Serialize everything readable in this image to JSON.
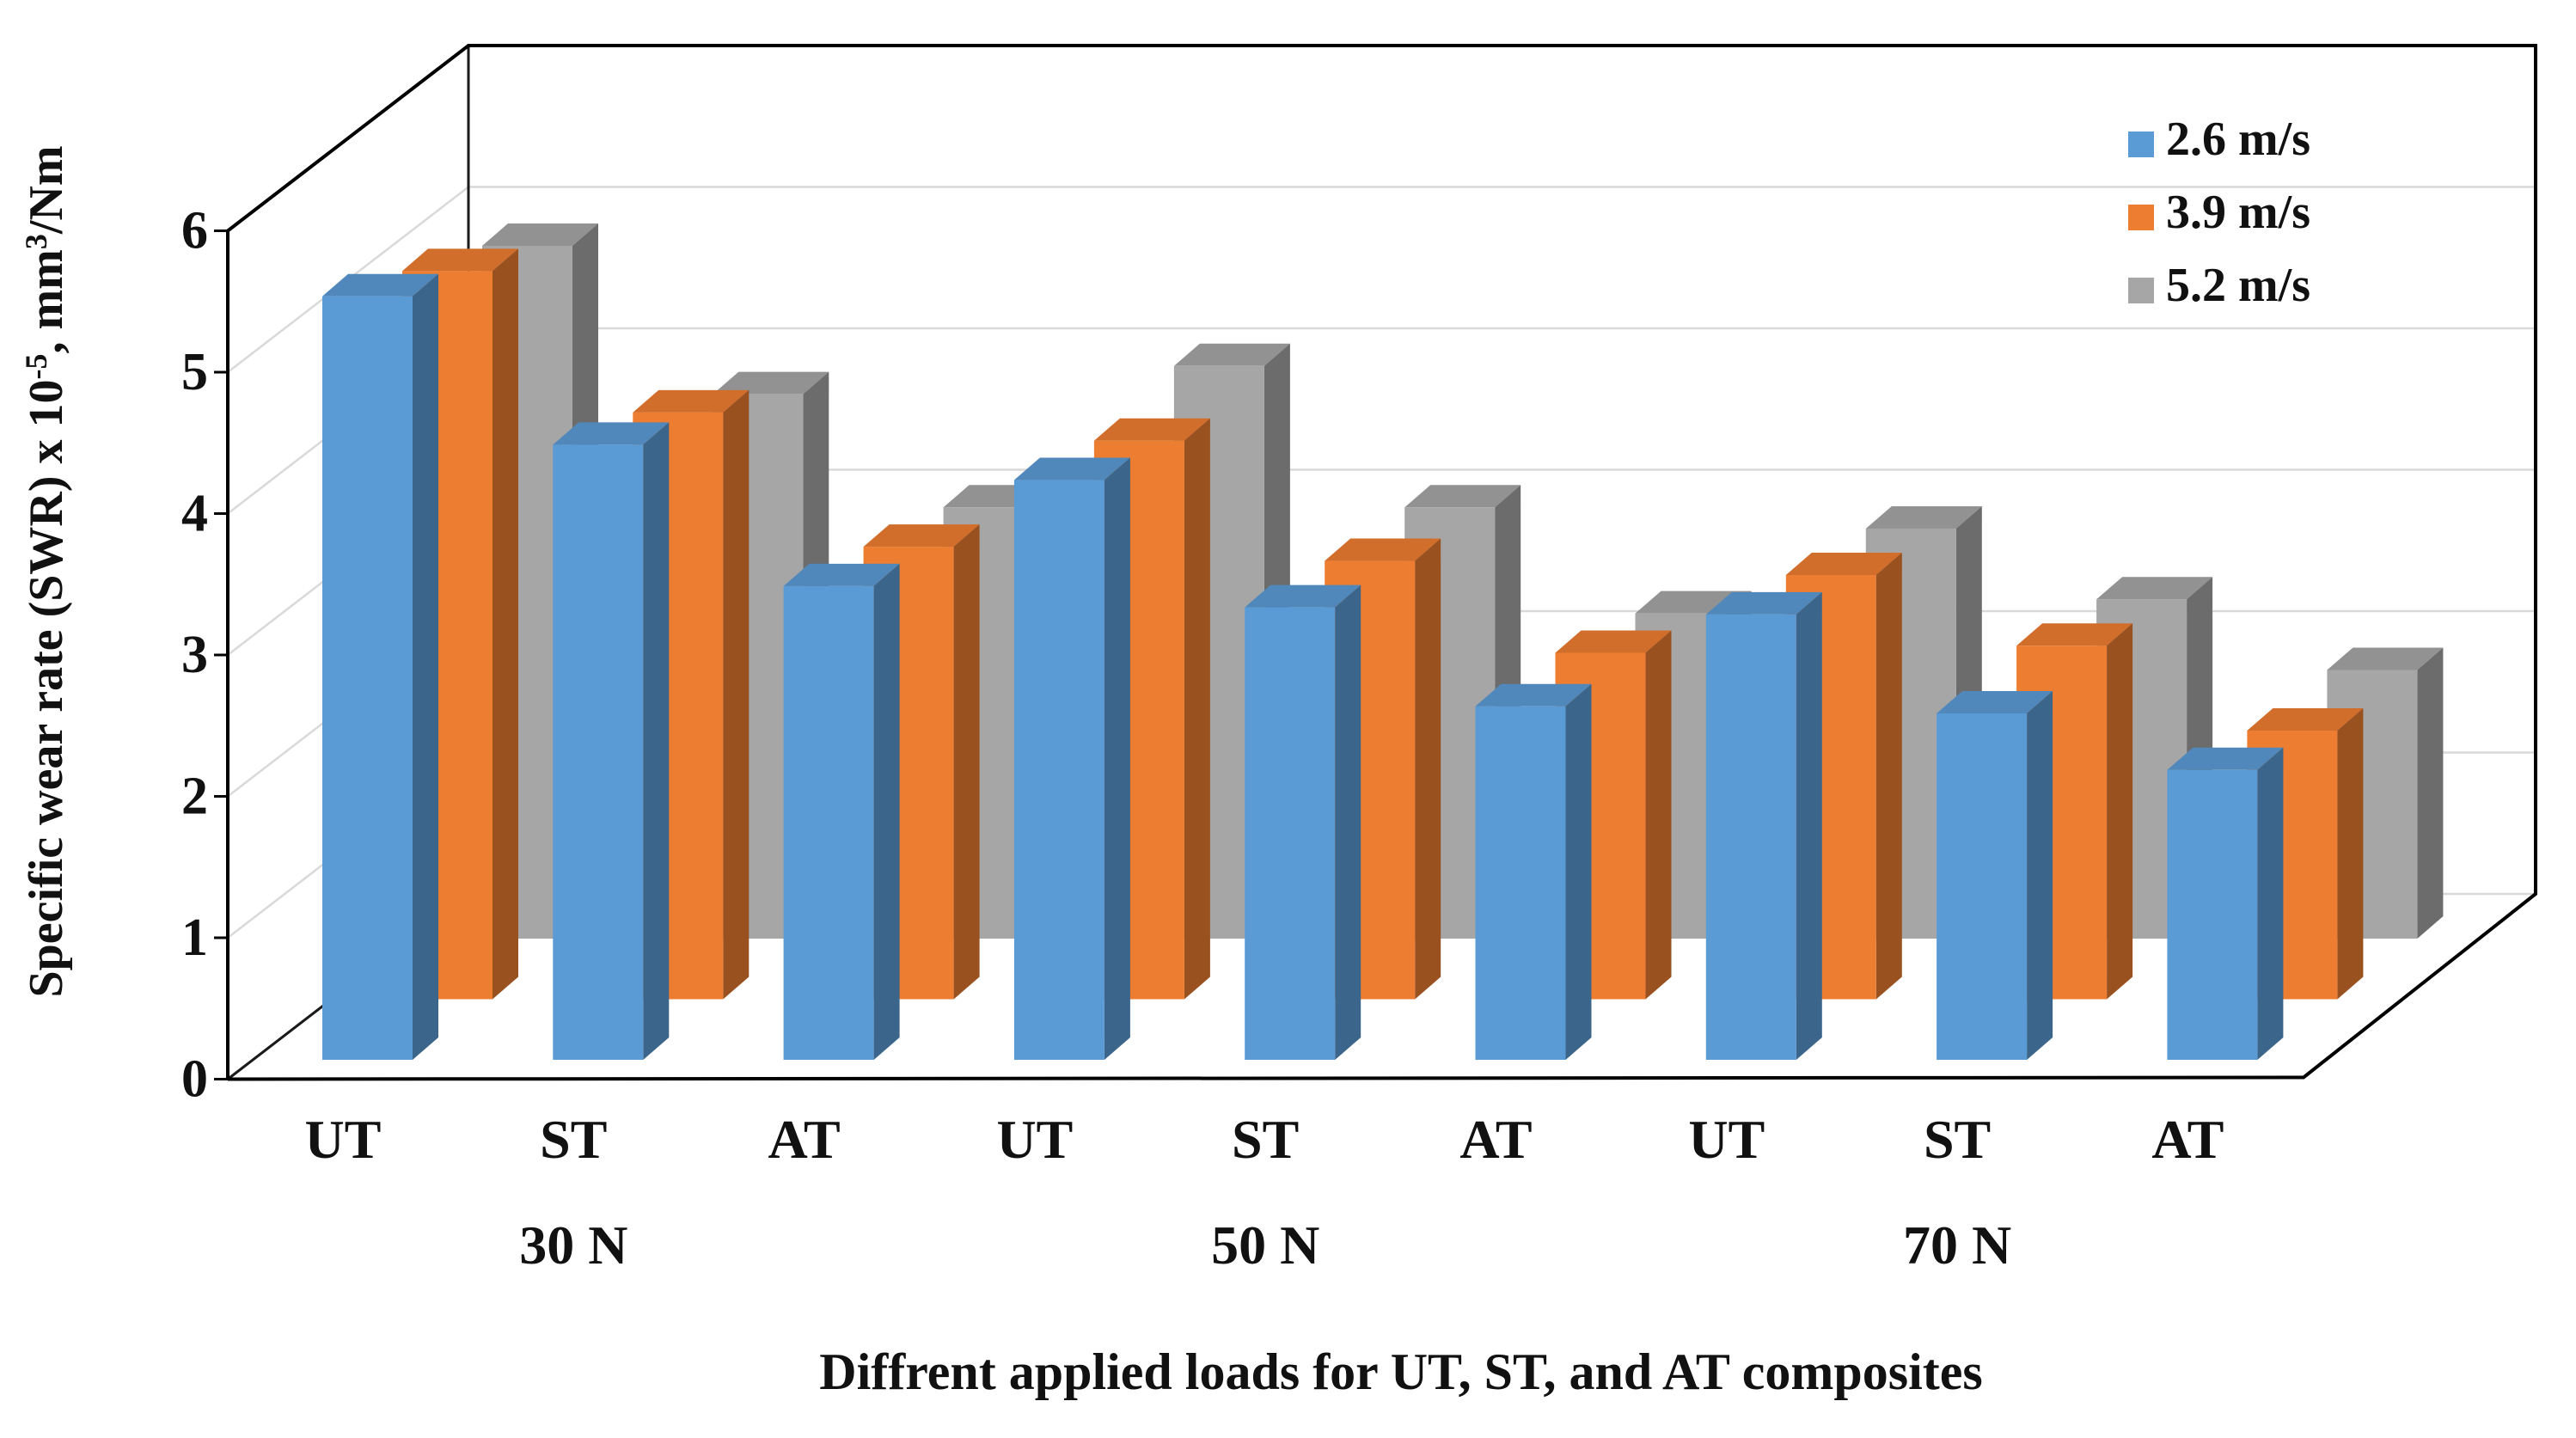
{
  "chart_data": {
    "type": "bar",
    "style": "3d-clustered-depth",
    "title": "Diffrent applied loads for UT, ST, and AT composites",
    "ylabel_text": "Specific wear rate (SWR) x 10-5, mm3/Nm",
    "ylabel_parts": [
      {
        "t": "Specific wear rate (SWR) x 10"
      },
      {
        "t": "-5",
        "sup": true
      },
      {
        "t": ", mm"
      },
      {
        "t": "3",
        "sup": true
      },
      {
        "t": "/Nm"
      }
    ],
    "ylim": [
      0,
      6
    ],
    "yticks": [
      "0",
      "1",
      "2",
      "3",
      "4",
      "5",
      "6"
    ],
    "grid": true,
    "legend_position": "top-right",
    "categories": [
      "UT",
      "ST",
      "AT",
      "UT",
      "ST",
      "AT",
      "UT",
      "ST",
      "AT"
    ],
    "group_labels": [
      "30 N",
      "50 N",
      "70 N"
    ],
    "series": [
      {
        "name": "2.6 m/s",
        "color": "#5B9BD5",
        "values": [
          5.4,
          4.35,
          3.35,
          4.1,
          3.2,
          2.5,
          3.15,
          2.45,
          2.05
        ]
      },
      {
        "name": "3.9 m/s",
        "color": "#ED7D31",
        "values": [
          5.15,
          4.15,
          3.2,
          3.95,
          3.1,
          2.45,
          3.0,
          2.5,
          1.9
        ]
      },
      {
        "name": "5.2 m/s",
        "color": "#A6A6A6",
        "values": [
          4.9,
          3.85,
          3.05,
          4.05,
          3.05,
          2.3,
          2.9,
          2.4,
          1.9
        ]
      }
    ],
    "colors": {
      "axis": "#000000",
      "gridline": "#D9D9D9",
      "text": "#111111"
    }
  }
}
